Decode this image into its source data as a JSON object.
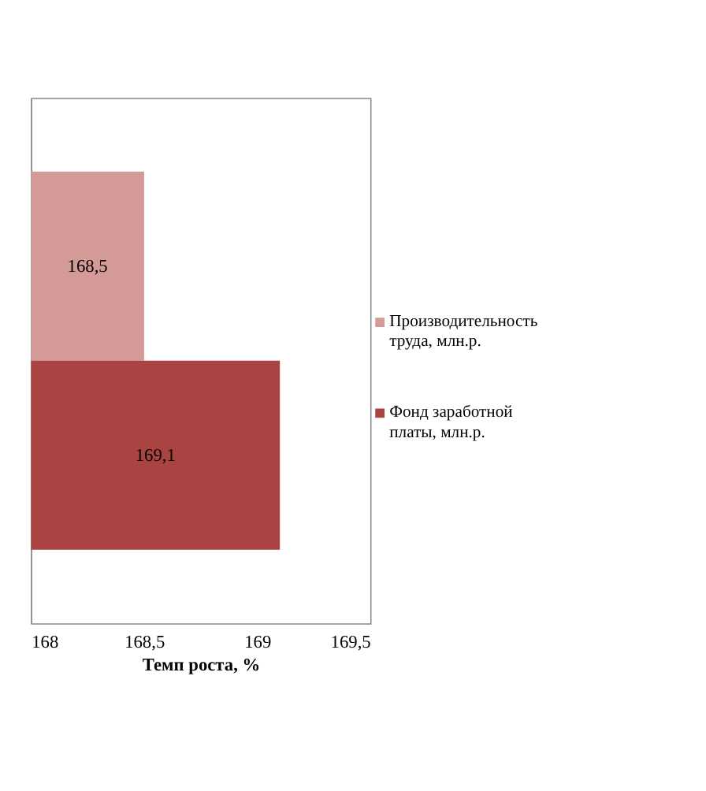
{
  "chart_data": {
    "type": "bar",
    "orientation": "horizontal",
    "categories": [
      null
    ],
    "series": [
      {
        "name": "Производительность труда, млн.р.",
        "color": "#d49a98",
        "values": [
          168.5
        ],
        "value_labels": [
          "168,5"
        ]
      },
      {
        "name": "Фонд заработной платы, млн.р.",
        "color": "#a94442",
        "values": [
          169.1
        ],
        "value_labels": [
          "169,1"
        ]
      }
    ],
    "xlabel": "Темп роста, %",
    "xlim": [
      168,
      169.5
    ],
    "xticks": [
      168,
      {
        "value": 168.5,
        "label": "168,5"
      },
      169,
      {
        "value": 169.5,
        "label": "169,5"
      }
    ],
    "grid": false,
    "legend": "right",
    "tick_labels": "x"
  }
}
